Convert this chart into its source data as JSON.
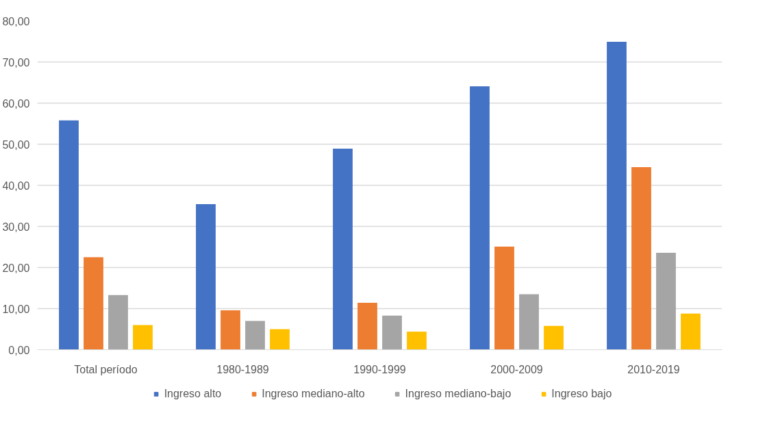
{
  "chart_data": {
    "type": "bar",
    "categories": [
      "Total período",
      "1980-1989",
      "1990-1999",
      "2000-2009",
      "2010-2019"
    ],
    "series": [
      {
        "name": "Ingreso alto",
        "color": "#4472c4",
        "values": [
          55.8,
          35.4,
          48.9,
          64.1,
          74.9
        ]
      },
      {
        "name": "Ingreso mediano-alto",
        "color": "#ed7d31",
        "values": [
          22.5,
          9.6,
          11.4,
          25.1,
          44.4
        ]
      },
      {
        "name": "Ingreso mediano-bajo",
        "color": "#a5a5a5",
        "values": [
          13.3,
          7.0,
          8.3,
          13.5,
          23.6
        ]
      },
      {
        "name": "Ingreso bajo",
        "color": "#ffc000",
        "values": [
          6.0,
          5.0,
          4.4,
          5.8,
          8.8
        ]
      }
    ],
    "ylim": [
      0,
      80
    ],
    "yticks": [
      {
        "value": 0,
        "label": "0,00"
      },
      {
        "value": 10,
        "label": "10,00"
      },
      {
        "value": 20,
        "label": "20,00"
      },
      {
        "value": 30,
        "label": "30,00"
      },
      {
        "value": 40,
        "label": "40,00"
      },
      {
        "value": 50,
        "label": "50,00"
      },
      {
        "value": 60,
        "label": "60,00"
      },
      {
        "value": 70,
        "label": "70,00"
      },
      {
        "value": 80,
        "label": "80,00"
      }
    ],
    "grid": "y",
    "legend": "bottom"
  }
}
